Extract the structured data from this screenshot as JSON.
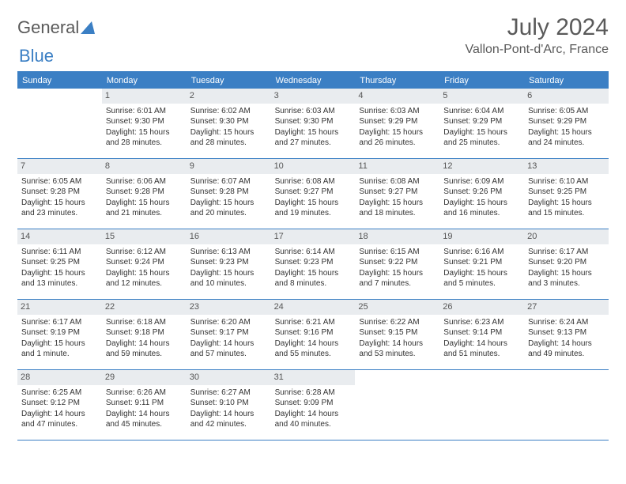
{
  "brand": {
    "part1": "General",
    "part2": "Blue"
  },
  "title": "July 2024",
  "location": "Vallon-Pont-d'Arc, France",
  "colors": {
    "header_bar": "#3b7fc4",
    "daynum_bg": "#e9ecef",
    "text": "#333333",
    "muted": "#5a5a5a"
  },
  "daynames": [
    "Sunday",
    "Monday",
    "Tuesday",
    "Wednesday",
    "Thursday",
    "Friday",
    "Saturday"
  ],
  "weeks": [
    [
      {
        "n": "",
        "sr": "",
        "ss": "",
        "dl": ""
      },
      {
        "n": "1",
        "sr": "Sunrise: 6:01 AM",
        "ss": "Sunset: 9:30 PM",
        "dl": "Daylight: 15 hours and 28 minutes."
      },
      {
        "n": "2",
        "sr": "Sunrise: 6:02 AM",
        "ss": "Sunset: 9:30 PM",
        "dl": "Daylight: 15 hours and 28 minutes."
      },
      {
        "n": "3",
        "sr": "Sunrise: 6:03 AM",
        "ss": "Sunset: 9:30 PM",
        "dl": "Daylight: 15 hours and 27 minutes."
      },
      {
        "n": "4",
        "sr": "Sunrise: 6:03 AM",
        "ss": "Sunset: 9:29 PM",
        "dl": "Daylight: 15 hours and 26 minutes."
      },
      {
        "n": "5",
        "sr": "Sunrise: 6:04 AM",
        "ss": "Sunset: 9:29 PM",
        "dl": "Daylight: 15 hours and 25 minutes."
      },
      {
        "n": "6",
        "sr": "Sunrise: 6:05 AM",
        "ss": "Sunset: 9:29 PM",
        "dl": "Daylight: 15 hours and 24 minutes."
      }
    ],
    [
      {
        "n": "7",
        "sr": "Sunrise: 6:05 AM",
        "ss": "Sunset: 9:28 PM",
        "dl": "Daylight: 15 hours and 23 minutes."
      },
      {
        "n": "8",
        "sr": "Sunrise: 6:06 AM",
        "ss": "Sunset: 9:28 PM",
        "dl": "Daylight: 15 hours and 21 minutes."
      },
      {
        "n": "9",
        "sr": "Sunrise: 6:07 AM",
        "ss": "Sunset: 9:28 PM",
        "dl": "Daylight: 15 hours and 20 minutes."
      },
      {
        "n": "10",
        "sr": "Sunrise: 6:08 AM",
        "ss": "Sunset: 9:27 PM",
        "dl": "Daylight: 15 hours and 19 minutes."
      },
      {
        "n": "11",
        "sr": "Sunrise: 6:08 AM",
        "ss": "Sunset: 9:27 PM",
        "dl": "Daylight: 15 hours and 18 minutes."
      },
      {
        "n": "12",
        "sr": "Sunrise: 6:09 AM",
        "ss": "Sunset: 9:26 PM",
        "dl": "Daylight: 15 hours and 16 minutes."
      },
      {
        "n": "13",
        "sr": "Sunrise: 6:10 AM",
        "ss": "Sunset: 9:25 PM",
        "dl": "Daylight: 15 hours and 15 minutes."
      }
    ],
    [
      {
        "n": "14",
        "sr": "Sunrise: 6:11 AM",
        "ss": "Sunset: 9:25 PM",
        "dl": "Daylight: 15 hours and 13 minutes."
      },
      {
        "n": "15",
        "sr": "Sunrise: 6:12 AM",
        "ss": "Sunset: 9:24 PM",
        "dl": "Daylight: 15 hours and 12 minutes."
      },
      {
        "n": "16",
        "sr": "Sunrise: 6:13 AM",
        "ss": "Sunset: 9:23 PM",
        "dl": "Daylight: 15 hours and 10 minutes."
      },
      {
        "n": "17",
        "sr": "Sunrise: 6:14 AM",
        "ss": "Sunset: 9:23 PM",
        "dl": "Daylight: 15 hours and 8 minutes."
      },
      {
        "n": "18",
        "sr": "Sunrise: 6:15 AM",
        "ss": "Sunset: 9:22 PM",
        "dl": "Daylight: 15 hours and 7 minutes."
      },
      {
        "n": "19",
        "sr": "Sunrise: 6:16 AM",
        "ss": "Sunset: 9:21 PM",
        "dl": "Daylight: 15 hours and 5 minutes."
      },
      {
        "n": "20",
        "sr": "Sunrise: 6:17 AM",
        "ss": "Sunset: 9:20 PM",
        "dl": "Daylight: 15 hours and 3 minutes."
      }
    ],
    [
      {
        "n": "21",
        "sr": "Sunrise: 6:17 AM",
        "ss": "Sunset: 9:19 PM",
        "dl": "Daylight: 15 hours and 1 minute."
      },
      {
        "n": "22",
        "sr": "Sunrise: 6:18 AM",
        "ss": "Sunset: 9:18 PM",
        "dl": "Daylight: 14 hours and 59 minutes."
      },
      {
        "n": "23",
        "sr": "Sunrise: 6:20 AM",
        "ss": "Sunset: 9:17 PM",
        "dl": "Daylight: 14 hours and 57 minutes."
      },
      {
        "n": "24",
        "sr": "Sunrise: 6:21 AM",
        "ss": "Sunset: 9:16 PM",
        "dl": "Daylight: 14 hours and 55 minutes."
      },
      {
        "n": "25",
        "sr": "Sunrise: 6:22 AM",
        "ss": "Sunset: 9:15 PM",
        "dl": "Daylight: 14 hours and 53 minutes."
      },
      {
        "n": "26",
        "sr": "Sunrise: 6:23 AM",
        "ss": "Sunset: 9:14 PM",
        "dl": "Daylight: 14 hours and 51 minutes."
      },
      {
        "n": "27",
        "sr": "Sunrise: 6:24 AM",
        "ss": "Sunset: 9:13 PM",
        "dl": "Daylight: 14 hours and 49 minutes."
      }
    ],
    [
      {
        "n": "28",
        "sr": "Sunrise: 6:25 AM",
        "ss": "Sunset: 9:12 PM",
        "dl": "Daylight: 14 hours and 47 minutes."
      },
      {
        "n": "29",
        "sr": "Sunrise: 6:26 AM",
        "ss": "Sunset: 9:11 PM",
        "dl": "Daylight: 14 hours and 45 minutes."
      },
      {
        "n": "30",
        "sr": "Sunrise: 6:27 AM",
        "ss": "Sunset: 9:10 PM",
        "dl": "Daylight: 14 hours and 42 minutes."
      },
      {
        "n": "31",
        "sr": "Sunrise: 6:28 AM",
        "ss": "Sunset: 9:09 PM",
        "dl": "Daylight: 14 hours and 40 minutes."
      },
      {
        "n": "",
        "sr": "",
        "ss": "",
        "dl": ""
      },
      {
        "n": "",
        "sr": "",
        "ss": "",
        "dl": ""
      },
      {
        "n": "",
        "sr": "",
        "ss": "",
        "dl": ""
      }
    ]
  ]
}
